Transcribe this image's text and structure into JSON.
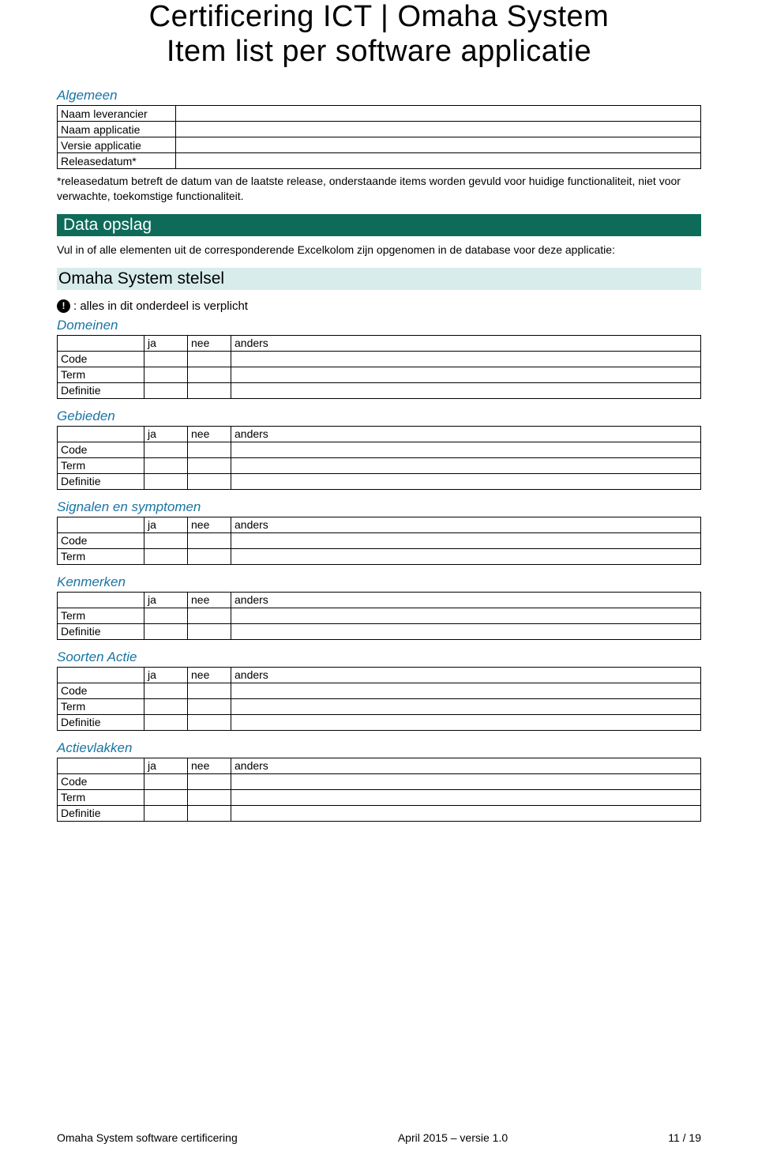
{
  "colors": {
    "band_dark": "#0e6b5a",
    "band_light": "#d7eceb",
    "section_label": "#1a74a3",
    "border": "#000000",
    "text": "#000000",
    "background": "#ffffff"
  },
  "title_line1": "Certificering ICT | Omaha System",
  "title_line2": "Item list per software applicatie",
  "general": {
    "label": "Algemeen",
    "rows": [
      "Naam leverancier",
      "Naam applicatie",
      "Versie applicatie",
      "Releasedatum*"
    ]
  },
  "release_note": "*releasedatum betreft de datum van de laatste release, onderstaande items worden gevuld voor huidige functionaliteit, niet voor verwachte, toekomstige functionaliteit.",
  "data_opslag": {
    "heading": "Data opslag",
    "intro": "Vul in of alle elementen uit de corresponderende Excelkolom zijn opgenomen in de database voor deze applicatie:"
  },
  "stelsel_heading": "Omaha System stelsel",
  "mandatory_text": ": alles in dit onderdeel is verplicht",
  "col_headers": {
    "ja": "ja",
    "nee": "nee",
    "anders": "anders"
  },
  "sections": [
    {
      "label": "Domeinen",
      "rows": [
        "Code",
        "Term",
        "Definitie"
      ]
    },
    {
      "label": "Gebieden",
      "rows": [
        "Code",
        "Term",
        "Definitie"
      ]
    },
    {
      "label": "Signalen en symptomen",
      "rows": [
        "Code",
        "Term"
      ]
    },
    {
      "label": "Kenmerken",
      "rows": [
        "Term",
        "Definitie"
      ]
    },
    {
      "label": "Soorten Actie",
      "rows": [
        "Code",
        "Term",
        "Definitie"
      ]
    },
    {
      "label": "Actievlakken",
      "rows": [
        "Code",
        "Term",
        "Definitie"
      ]
    }
  ],
  "footer": {
    "left": "Omaha System software certificering",
    "center": "April 2015 – versie 1.0",
    "right": "11 / 19"
  }
}
